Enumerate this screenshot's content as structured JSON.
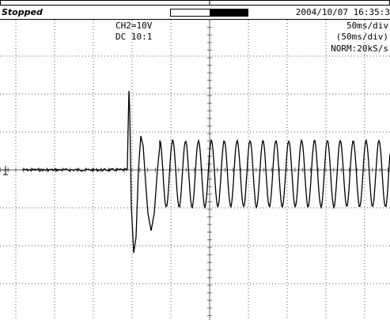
{
  "status": "Stopped",
  "timestamp": "2004/10/07 16:35:3",
  "channel": {
    "scale": "CH2=10V",
    "coupling": "DC  10:1"
  },
  "timebase": {
    "main": "50ms/div",
    "zoom": "(50ms/div)",
    "mode": "NORM:20kS/s"
  }
}
